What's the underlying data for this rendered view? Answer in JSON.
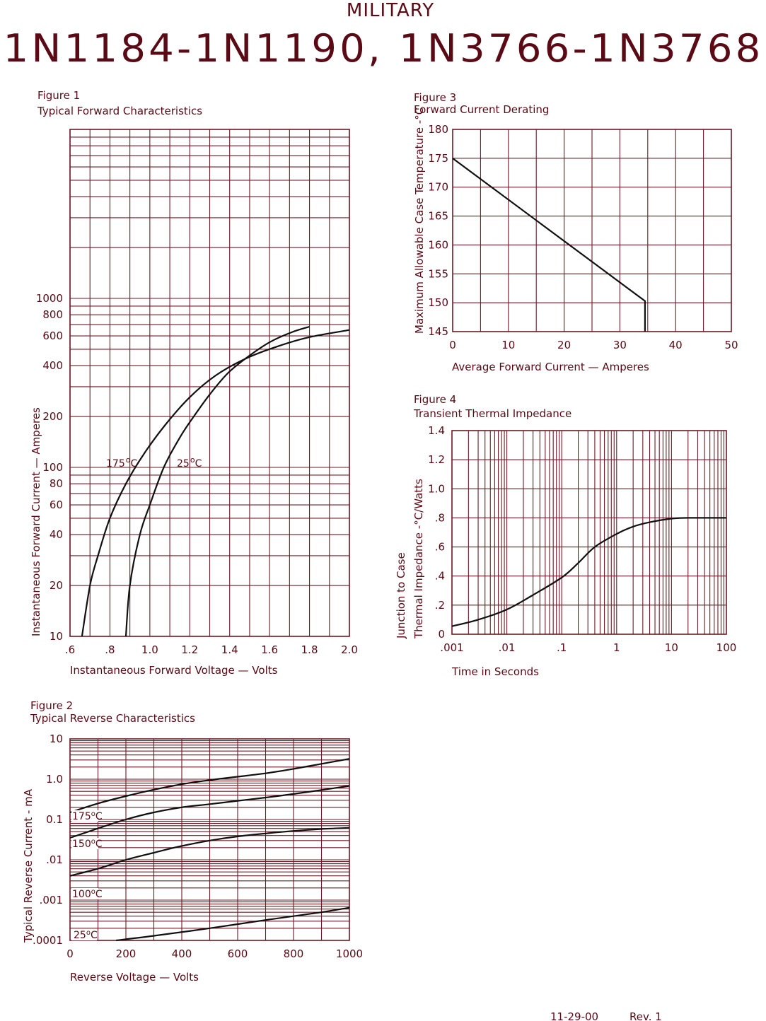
{
  "header": {
    "top": "MILITARY",
    "main": "1N1184-1N1190, 1N3766-1N3768"
  },
  "footer": {
    "date": "11-29-00",
    "rev": "Rev. 1"
  },
  "colors": {
    "line": "#5a0a14",
    "curve": "#111111"
  },
  "chart_data": [
    {
      "id": "fig1",
      "type": "line",
      "figure": "Figure 1",
      "title": "Typical Forward Characteristics",
      "xlabel": "Instantaneous Forward Voltage — Volts",
      "ylabel": "Instantaneous Forward Current — Amperes",
      "y_scale": "log",
      "xlim": [
        0.6,
        2.0
      ],
      "ylim": [
        10,
        10000
      ],
      "x_ticks": [
        0.6,
        0.8,
        1.0,
        1.2,
        1.4,
        1.6,
        1.8,
        2.0
      ],
      "x_tick_labels": [
        ".6",
        ".8",
        "1.0",
        "1.2",
        "1.4",
        "1.6",
        "1.8",
        "2.0"
      ],
      "y_ticks": [
        10,
        20,
        40,
        60,
        80,
        100,
        200,
        400,
        600,
        800,
        1000
      ],
      "y_tick_labels": [
        "10",
        "20",
        "40",
        "60",
        "80",
        "100",
        "200",
        "400",
        "600",
        "800",
        "1000"
      ],
      "grid": true,
      "series": [
        {
          "name": "175°C",
          "label_text": "175",
          "label_unit": "C",
          "x": [
            0.66,
            0.7,
            0.74,
            0.8,
            0.88,
            0.97,
            1.08,
            1.2,
            1.33,
            1.48,
            1.64,
            1.8,
            2.0
          ],
          "y": [
            10,
            20,
            30,
            50,
            80,
            120,
            180,
            260,
            350,
            440,
            520,
            590,
            650
          ]
        },
        {
          "name": "25°C",
          "label_text": "25",
          "label_unit": "C",
          "x": [
            0.88,
            0.9,
            0.95,
            1.0,
            1.07,
            1.15,
            1.22,
            1.3,
            1.39,
            1.49,
            1.6,
            1.71,
            1.8
          ],
          "y": [
            10,
            20,
            40,
            60,
            100,
            150,
            200,
            270,
            360,
            450,
            550,
            630,
            680
          ]
        }
      ]
    },
    {
      "id": "fig2",
      "type": "line",
      "figure": "Figure 2",
      "title": "Typical Reverse Characteristics",
      "xlabel": "Reverse Voltage — Volts",
      "ylabel": "Typical Reverse Current - mA",
      "y_scale": "log",
      "xlim": [
        0,
        1000
      ],
      "ylim": [
        0.0001,
        10
      ],
      "x_ticks": [
        0,
        200,
        400,
        600,
        800,
        1000
      ],
      "x_tick_labels": [
        "0",
        "200",
        "400",
        "600",
        "800",
        "1000"
      ],
      "y_ticks": [
        0.0001,
        0.001,
        0.01,
        0.1,
        1,
        10
      ],
      "y_tick_labels": [
        ".0001",
        ".001",
        ".01",
        "0.1",
        "1.0",
        "10"
      ],
      "grid": true,
      "series": [
        {
          "name": "175°C",
          "label_text": "175",
          "label_unit": "C",
          "x": [
            0,
            100,
            200,
            300,
            400,
            500,
            600,
            700,
            800,
            900,
            1000
          ],
          "y": [
            0.15,
            0.25,
            0.38,
            0.55,
            0.75,
            0.95,
            1.15,
            1.4,
            1.8,
            2.4,
            3.2
          ]
        },
        {
          "name": "150°C",
          "label_text": "150",
          "label_unit": "C",
          "x": [
            0,
            100,
            200,
            300,
            400,
            500,
            600,
            700,
            800,
            900,
            1000
          ],
          "y": [
            0.035,
            0.06,
            0.1,
            0.15,
            0.2,
            0.24,
            0.29,
            0.35,
            0.43,
            0.54,
            0.68
          ]
        },
        {
          "name": "100°C",
          "label_text": "100",
          "label_unit": "C",
          "x": [
            0,
            100,
            200,
            300,
            400,
            500,
            600,
            700,
            800,
            900,
            1000
          ],
          "y": [
            0.004,
            0.006,
            0.01,
            0.015,
            0.022,
            0.03,
            0.038,
            0.045,
            0.052,
            0.058,
            0.062
          ]
        },
        {
          "name": "25°C",
          "label_text": "25",
          "label_unit": "C",
          "x": [
            165,
            300,
            500,
            700,
            900,
            1000
          ],
          "y": [
            0.0001,
            0.00013,
            0.0002,
            0.00032,
            0.0005,
            0.00065
          ]
        }
      ]
    },
    {
      "id": "fig3",
      "type": "line",
      "figure": "Figure 3",
      "title": "Forward Current Derating",
      "xlabel": "Average Forward Current — Amperes",
      "ylabel": "Maximum Allowable Case Temperature -°C",
      "y_scale": "linear",
      "xlim": [
        0,
        50
      ],
      "ylim": [
        145,
        180
      ],
      "x_ticks": [
        0,
        10,
        20,
        30,
        40,
        50
      ],
      "x_tick_labels": [
        "0",
        "10",
        "20",
        "30",
        "40",
        "50"
      ],
      "y_ticks": [
        145,
        150,
        155,
        160,
        165,
        170,
        175,
        180
      ],
      "y_tick_labels": [
        "145",
        "150",
        "155",
        "160",
        "165",
        "170",
        "175",
        "180"
      ],
      "grid": true,
      "series": [
        {
          "x": [
            0,
            34.5,
            34.5
          ],
          "y": [
            175,
            150.3,
            145
          ]
        }
      ]
    },
    {
      "id": "fig4",
      "type": "line",
      "figure": "Figure 4",
      "title": "Transient Thermal Impedance",
      "xlabel": "Time in Seconds",
      "ylabel_line1": "Junction to Case",
      "ylabel_line2": "Thermal Impedance -°C/Watts",
      "x_scale": "log",
      "y_scale": "linear",
      "xlim": [
        0.001,
        100
      ],
      "ylim": [
        0,
        1.4
      ],
      "x_ticks": [
        0.001,
        0.01,
        0.1,
        1,
        10,
        100
      ],
      "x_tick_labels": [
        ".001",
        ".01",
        ".1",
        "1",
        "10",
        "100"
      ],
      "y_ticks": [
        0,
        0.2,
        0.4,
        0.6,
        0.8,
        1.0,
        1.2,
        1.4
      ],
      "y_tick_labels": [
        "0",
        ".2",
        ".4",
        ".6",
        ".8",
        "1.0",
        "1.2",
        "1.4"
      ],
      "grid": true,
      "series": [
        {
          "x": [
            0.001,
            0.003,
            0.01,
            0.03,
            0.1,
            0.2,
            0.4,
            1,
            2,
            4,
            10,
            20,
            50,
            100
          ],
          "y": [
            0.055,
            0.1,
            0.17,
            0.27,
            0.39,
            0.49,
            0.6,
            0.69,
            0.74,
            0.77,
            0.795,
            0.8,
            0.8,
            0.8
          ]
        }
      ]
    }
  ]
}
